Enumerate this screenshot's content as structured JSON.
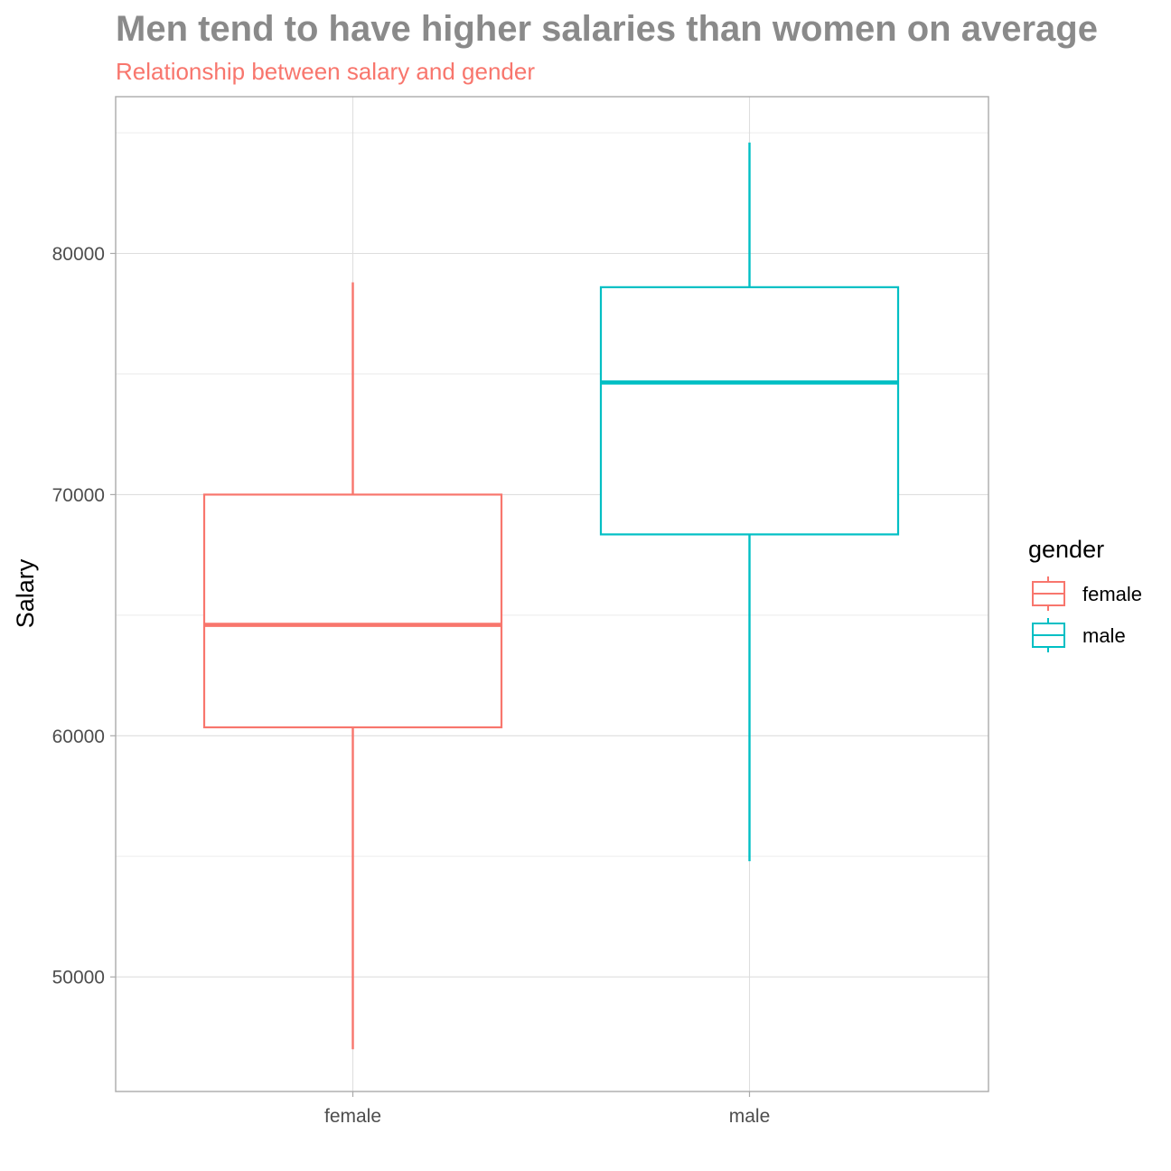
{
  "chart_data": {
    "type": "boxplot",
    "title": "Men tend to have higher salaries than women on average",
    "subtitle": "Relationship between salary and gender",
    "xlabel": "",
    "ylabel": "Salary",
    "categories": [
      "female",
      "male"
    ],
    "ylim": [
      45250,
      86500
    ],
    "y_ticks": [
      50000,
      60000,
      70000,
      80000
    ],
    "y_tick_labels": [
      "50000",
      "60000",
      "70000",
      "80000"
    ],
    "grid": true,
    "legend": {
      "title": "gender",
      "position": "right",
      "entries": [
        "female",
        "male"
      ]
    },
    "colors": {
      "female": "#F8766D",
      "male": "#00BFC4",
      "subtitle": "#F8766D",
      "title": "#8a8a8a"
    },
    "boxes": [
      {
        "category": "female",
        "whisker_low": 47000,
        "q1": 60350,
        "median": 64600,
        "q3": 70000,
        "whisker_high": 78800
      },
      {
        "category": "male",
        "whisker_low": 54800,
        "q1": 68350,
        "median": 74650,
        "q3": 78600,
        "whisker_high": 84600
      }
    ]
  }
}
